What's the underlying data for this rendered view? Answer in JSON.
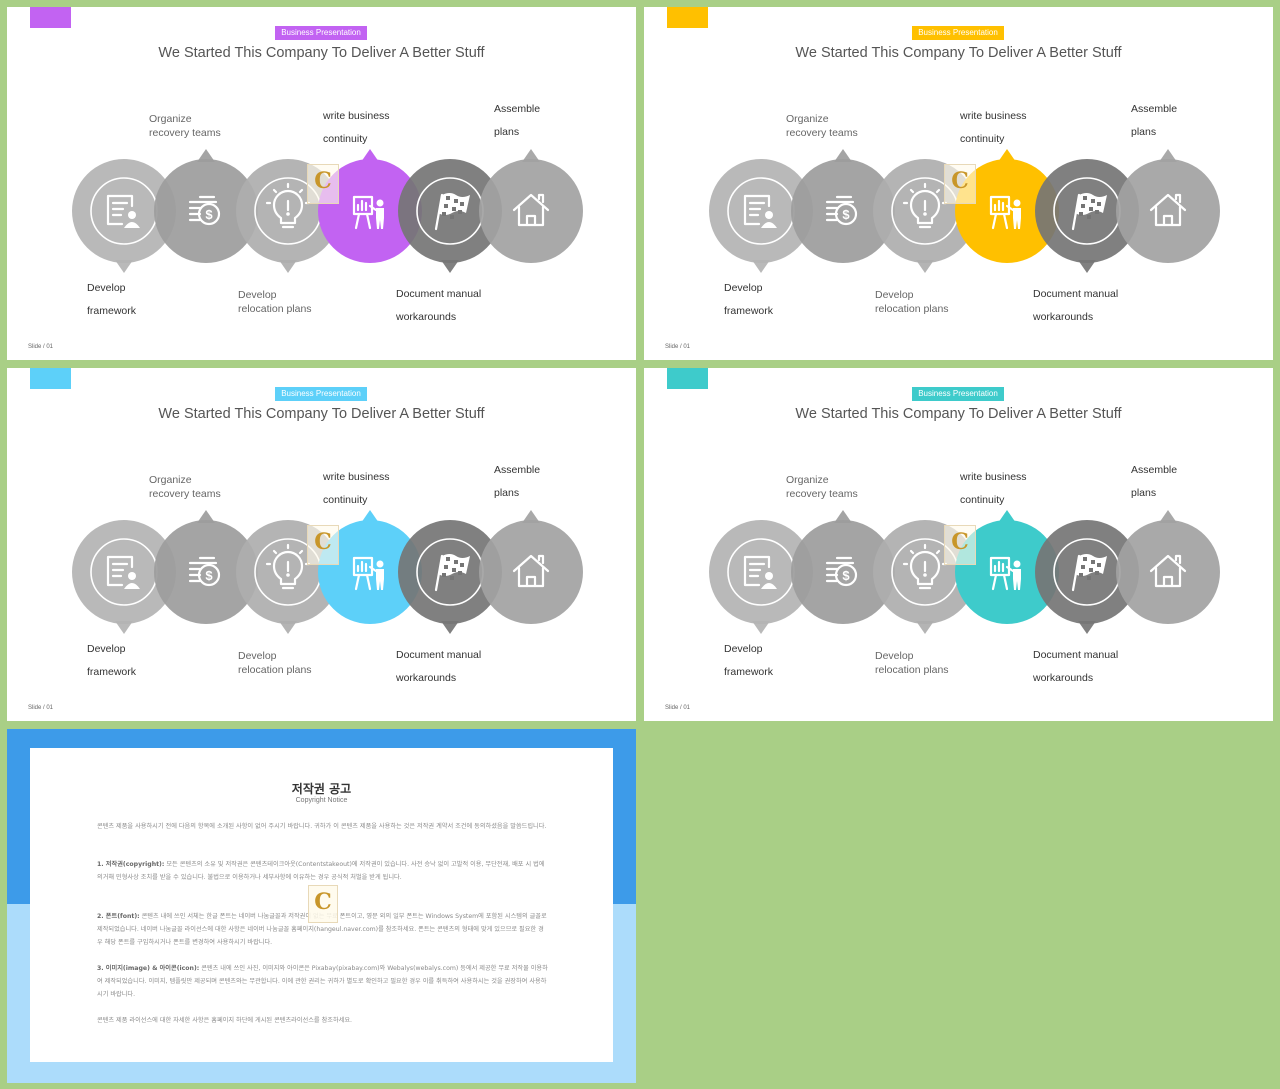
{
  "slides": [
    {
      "accent": "#c263f2"
    },
    {
      "accent": "#ffc000"
    },
    {
      "accent": "#5dd0f9"
    },
    {
      "accent": "#3ecbcb"
    }
  ],
  "slide_content": {
    "tag": "Business Presentation",
    "title": "We Started This Company To Deliver A Better Stuff",
    "footer": "Slide / 01",
    "steps": [
      {
        "label_line1": "Develop",
        "label_line2": "framework",
        "icon": "document-user-icon"
      },
      {
        "label_line1": "Organize",
        "label_line2": "recovery teams",
        "icon": "money-coins-icon"
      },
      {
        "label_line1": "Develop",
        "label_line2": "relocation plans",
        "icon": "lightbulb-icon"
      },
      {
        "label_line1": "write business",
        "label_line2": "continuity",
        "icon": "presentation-board-icon"
      },
      {
        "label_line1": "Document manual",
        "label_line2": "workarounds",
        "icon": "checkered-flag-icon"
      },
      {
        "label_line1": "Assemble",
        "label_line2": "plans",
        "icon": "house-icon"
      }
    ],
    "watermark_letter": "C"
  },
  "notice": {
    "title": "저작권 공고",
    "subtitle": "Copyright Notice",
    "intro": "콘텐츠 제품을 사용하시기 전에 다음의 항목에 소개된 사항이 없어 주시기 바랍니다. 귀하가 이 콘텐츠 제품을 사용하는 것은 저작권 계약서 조건에 동의하셨음을 말씀드립니다.",
    "item1_title": "1. 저작권(copyright):",
    "item1_text": "모든 콘텐츠의 소유 및 저작권은 콘텐츠테이크아웃(Contentstakeout)에 저작권이 있습니다. 사전 승낙 없이 고발적 이용, 무단전재, 배포 시 법에 의거해 민형사상 조치를 받을 수 있습니다. 불법으로 이용하거나 세부사항에 이유하는 경우 공식적 처벌을 받게 됩니다.",
    "item2_title": "2. 폰트(font):",
    "item2_text": "콘텐츠 내에 쓰인 서체는 한글 폰트는 네이버 나눔글꼴과 저작권이 없는 무료 폰트이고, 영문 외의 일부 폰트는 Windows System에 포함된 시스템의 글꼴로 제작되었습니다. 네이버 나눔글꼴 라이선스에 대한 사항은 네이버 나눔글꼴 홈페이지(hangeul.naver.com)를 참조하세요. 폰트는 콘텐츠의 형태에 맞게 있으므로 필요한 경우 해당 폰트를 구입하시거나 폰트를 변경하여 사용하시기 바랍니다.",
    "item3_title": "3. 이미지(image) & 아이콘(icon):",
    "item3_text": "콘텐츠 내에 쓰인 사진, 이미지와 아이콘은 Pixabay(pixabay.com)와 Webalys(webalys.com) 등에서 제공한 무료 저작물 이용하여 제작되었습니다. 이미지, 템플릿만 제공되며 콘텐츠와는 무관합니다. 이에 관한 권리는 귀하가 별도로 확인하고 필요한 경우 이를 취득하여 사용하시는 것을 권장하여 사용하시기 바랍니다.",
    "closing": "콘텐츠 제품 라이선스에 대한 자세한 사항은 홈페이지 하단에 게시된 콘텐츠라이선스를 참조하세요."
  }
}
